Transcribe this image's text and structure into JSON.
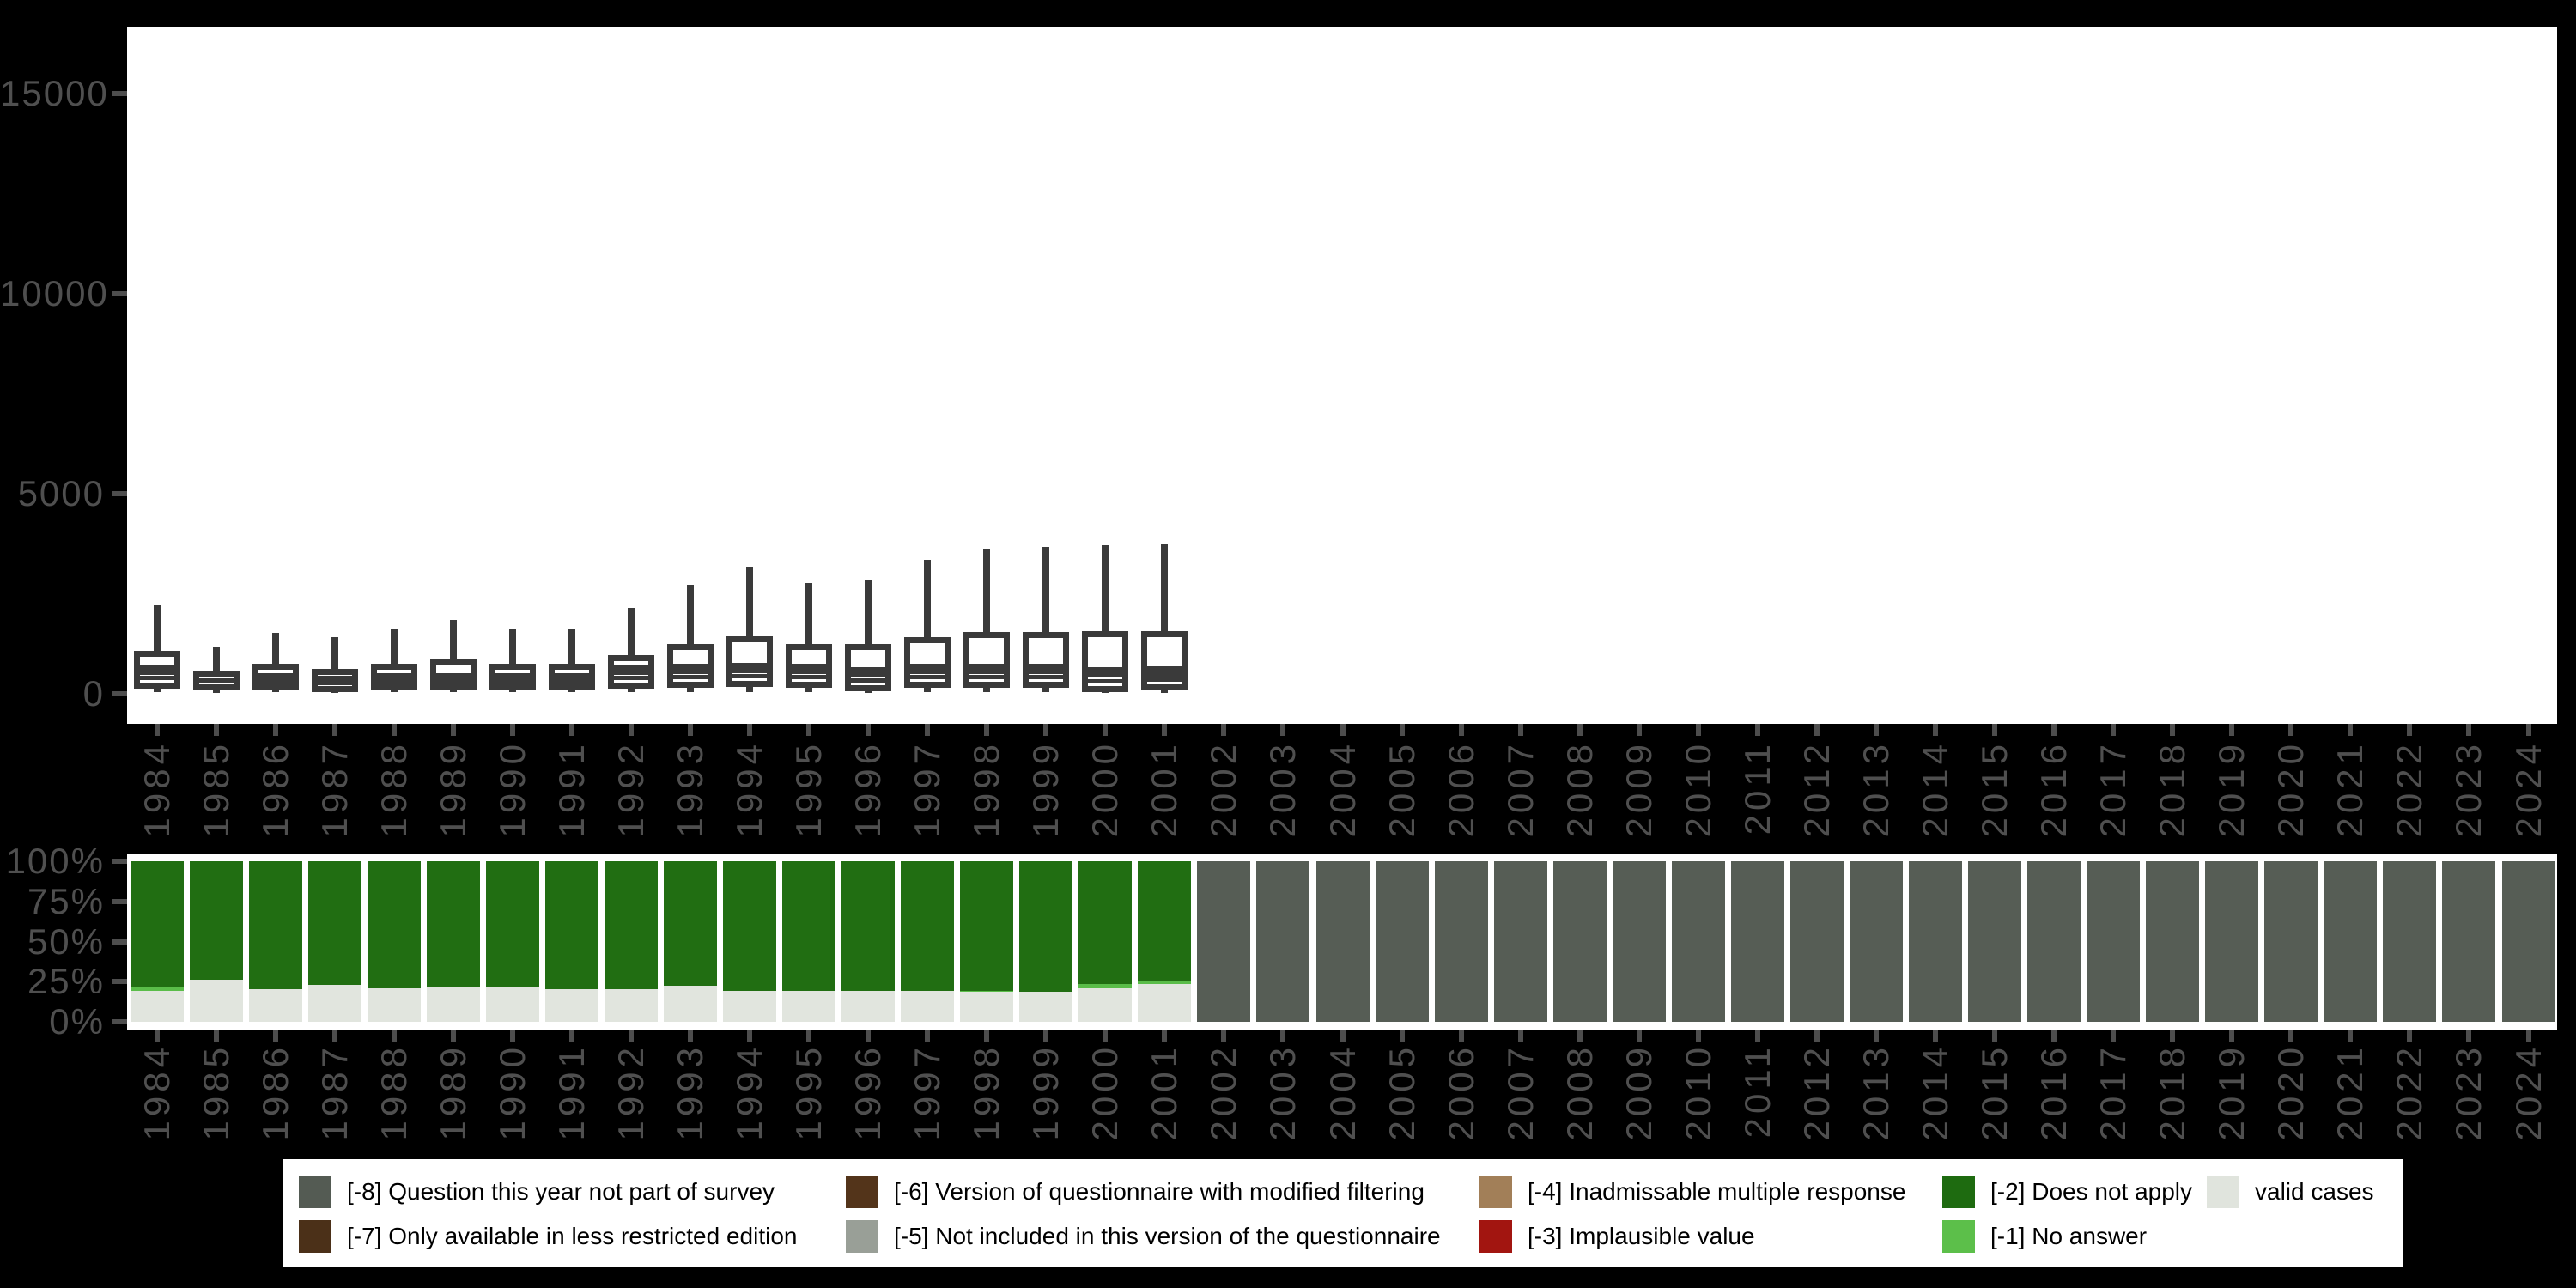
{
  "colors": {
    "background": "#000000",
    "panel": "#ffffff",
    "box_stroke": "#3a3a3a",
    "tick": "#4d4d4d",
    "axis_text": "#4f4f4f",
    "legend_text": "#000000"
  },
  "chart_data": [
    {
      "type": "boxplot",
      "title": "",
      "xlabel": "",
      "ylabel": "",
      "ylim": [
        0,
        16800
      ],
      "grid": false,
      "yticks": [
        {
          "v": 0,
          "label": "0"
        },
        {
          "v": 5000,
          "label": "5000"
        },
        {
          "v": 10000,
          "label": "10000"
        },
        {
          "v": 15000,
          "label": "15000"
        }
      ],
      "categories": [
        "1984",
        "1985",
        "1986",
        "1987",
        "1988",
        "1989",
        "1990",
        "1991",
        "1992",
        "1993",
        "1994",
        "1995",
        "1996",
        "1997",
        "1998",
        "1999",
        "2000",
        "2001",
        "2002",
        "2003",
        "2004",
        "2005",
        "2006",
        "2007",
        "2008",
        "2009",
        "2010",
        "2011",
        "2012",
        "2013",
        "2014",
        "2015",
        "2016",
        "2017",
        "2018",
        "2019",
        "2020",
        "2021",
        "2022",
        "2023",
        "2024"
      ],
      "boxes": [
        {
          "year": "1984",
          "upper_whisker": 2230,
          "box_top": 1075,
          "median": 520,
          "lower_line": 340,
          "box_bottom": 130,
          "lower_whisker": 40
        },
        {
          "year": "1985",
          "upper_whisker": 1180,
          "box_top": 560,
          "median": 300,
          "lower_line": 170,
          "box_bottom": 85,
          "lower_whisker": 30
        },
        {
          "year": "1986",
          "upper_whisker": 1520,
          "box_top": 750,
          "median": 370,
          "lower_line": 200,
          "box_bottom": 105,
          "lower_whisker": 35
        },
        {
          "year": "1987",
          "upper_whisker": 1420,
          "box_top": 620,
          "median": 320,
          "lower_line": 170,
          "box_bottom": 45,
          "lower_whisker": 15
        },
        {
          "year": "1988",
          "upper_whisker": 1610,
          "box_top": 750,
          "median": 345,
          "lower_line": 190,
          "box_bottom": 100,
          "lower_whisker": 35
        },
        {
          "year": "1989",
          "upper_whisker": 1845,
          "box_top": 860,
          "median": 390,
          "lower_line": 210,
          "box_bottom": 110,
          "lower_whisker": 35
        },
        {
          "year": "1990",
          "upper_whisker": 1610,
          "box_top": 760,
          "median": 360,
          "lower_line": 195,
          "box_bottom": 105,
          "lower_whisker": 35
        },
        {
          "year": "1991",
          "upper_whisker": 1610,
          "box_top": 760,
          "median": 360,
          "lower_line": 195,
          "box_bottom": 105,
          "lower_whisker": 35
        },
        {
          "year": "1992",
          "upper_whisker": 2145,
          "box_top": 965,
          "median": 430,
          "lower_line": 230,
          "box_bottom": 120,
          "lower_whisker": 40
        },
        {
          "year": "1993",
          "upper_whisker": 2725,
          "box_top": 1245,
          "median": 560,
          "lower_line": 300,
          "box_bottom": 145,
          "lower_whisker": 45
        },
        {
          "year": "1994",
          "upper_whisker": 3175,
          "box_top": 1440,
          "median": 560,
          "lower_line": 310,
          "box_bottom": 170,
          "lower_whisker": 50
        },
        {
          "year": "1995",
          "upper_whisker": 2770,
          "box_top": 1245,
          "median": 545,
          "lower_line": 295,
          "box_bottom": 150,
          "lower_whisker": 45
        },
        {
          "year": "1996",
          "upper_whisker": 2855,
          "box_top": 1245,
          "median": 535,
          "lower_line": 285,
          "box_bottom": 65,
          "lower_whisker": 25
        },
        {
          "year": "1997",
          "upper_whisker": 3350,
          "box_top": 1415,
          "median": 550,
          "lower_line": 300,
          "box_bottom": 150,
          "lower_whisker": 45
        },
        {
          "year": "1998",
          "upper_whisker": 3625,
          "box_top": 1545,
          "median": 550,
          "lower_line": 300,
          "box_bottom": 160,
          "lower_whisker": 50
        },
        {
          "year": "1999",
          "upper_whisker": 3670,
          "box_top": 1545,
          "median": 545,
          "lower_line": 298,
          "box_bottom": 160,
          "lower_whisker": 50
        },
        {
          "year": "2000",
          "upper_whisker": 3715,
          "box_top": 1565,
          "median": 535,
          "lower_line": 290,
          "box_bottom": 45,
          "lower_whisker": 15
        },
        {
          "year": "2001",
          "upper_whisker": 3755,
          "box_top": 1565,
          "median": 535,
          "lower_line": 290,
          "box_bottom": 90,
          "lower_whisker": 30
        }
      ]
    },
    {
      "type": "bar",
      "stacked": true,
      "percent": true,
      "title": "",
      "grid": false,
      "ylim": [
        0,
        100
      ],
      "yticks": [
        {
          "v": 0,
          "label": "0%"
        },
        {
          "v": 25,
          "label": "25%"
        },
        {
          "v": 50,
          "label": "50%"
        },
        {
          "v": 75,
          "label": "75%"
        },
        {
          "v": 100,
          "label": "100%"
        }
      ],
      "categories": [
        "1984",
        "1985",
        "1986",
        "1987",
        "1988",
        "1989",
        "1990",
        "1991",
        "1992",
        "1993",
        "1994",
        "1995",
        "1996",
        "1997",
        "1998",
        "1999",
        "2000",
        "2001",
        "2002",
        "2003",
        "2004",
        "2005",
        "2006",
        "2007",
        "2008",
        "2009",
        "2010",
        "2011",
        "2012",
        "2013",
        "2014",
        "2015",
        "2016",
        "2017",
        "2018",
        "2019",
        "2020",
        "2021",
        "2022",
        "2023",
        "2024"
      ],
      "stack_order": "bottom-to-top",
      "series": [
        {
          "name": "valid cases",
          "color": "#e1e5de",
          "values": [
            19,
            26,
            20.5,
            23,
            21,
            21.5,
            22,
            20.5,
            20.5,
            22.5,
            19,
            19.5,
            19,
            19,
            18.5,
            18.5,
            21,
            23.5,
            0,
            0,
            0,
            0,
            0,
            0,
            0,
            0,
            0,
            0,
            0,
            0,
            0,
            0,
            0,
            0,
            0,
            0,
            0,
            0,
            0,
            0,
            0
          ]
        },
        {
          "name": "[-1] No answer",
          "color": "#5abd49",
          "values": [
            3,
            0,
            0,
            0,
            0,
            0,
            0,
            0,
            0,
            0,
            0,
            0,
            0,
            0,
            1,
            0,
            2.5,
            1.5,
            0,
            0,
            0,
            0,
            0,
            0,
            0,
            0,
            0,
            0,
            0,
            0,
            0,
            0,
            0,
            0,
            0,
            0,
            0,
            0,
            0,
            0,
            0
          ]
        },
        {
          "name": "[-2] Does not apply",
          "color": "#216e12",
          "values": [
            78,
            74,
            79.5,
            77,
            79,
            78.5,
            78,
            79.5,
            79.5,
            77.5,
            81,
            80.5,
            81,
            81,
            80.5,
            81.5,
            76.5,
            75,
            0,
            0,
            0,
            0,
            0,
            0,
            0,
            0,
            0,
            0,
            0,
            0,
            0,
            0,
            0,
            0,
            0,
            0,
            0,
            0,
            0,
            0,
            0
          ]
        },
        {
          "name": "[-8] Question this year not part of survey",
          "color": "#565d55",
          "values": [
            0,
            0,
            0,
            0,
            0,
            0,
            0,
            0,
            0,
            0,
            0,
            0,
            0,
            0,
            0,
            0,
            0,
            0,
            100,
            100,
            100,
            100,
            100,
            100,
            100,
            100,
            100,
            100,
            100,
            100,
            100,
            100,
            100,
            100,
            100,
            100,
            100,
            100,
            100,
            100,
            100
          ]
        }
      ]
    }
  ],
  "legend": {
    "entries": [
      {
        "label": "[-8] Question this year not part of survey",
        "color": "#545b53"
      },
      {
        "label": "[-7] Only available in less restricted edition",
        "color": "#4b3018"
      },
      {
        "label": "[-6] Version of questionnaire with modified filtering",
        "color": "#53341a"
      },
      {
        "label": "[-5] Not included in this version of the questionnaire",
        "color": "#999f97"
      },
      {
        "label": "[-4] Inadmissable multiple response",
        "color": "#a27f58"
      },
      {
        "label": "[-3] Implausible value",
        "color": "#a21510"
      },
      {
        "label": "[-2] Does not apply",
        "color": "#1e6b10"
      },
      {
        "label": "[-1] No answer",
        "color": "#5cbf4a"
      },
      {
        "label": "valid cases",
        "color": "#e0e4dd"
      }
    ]
  }
}
